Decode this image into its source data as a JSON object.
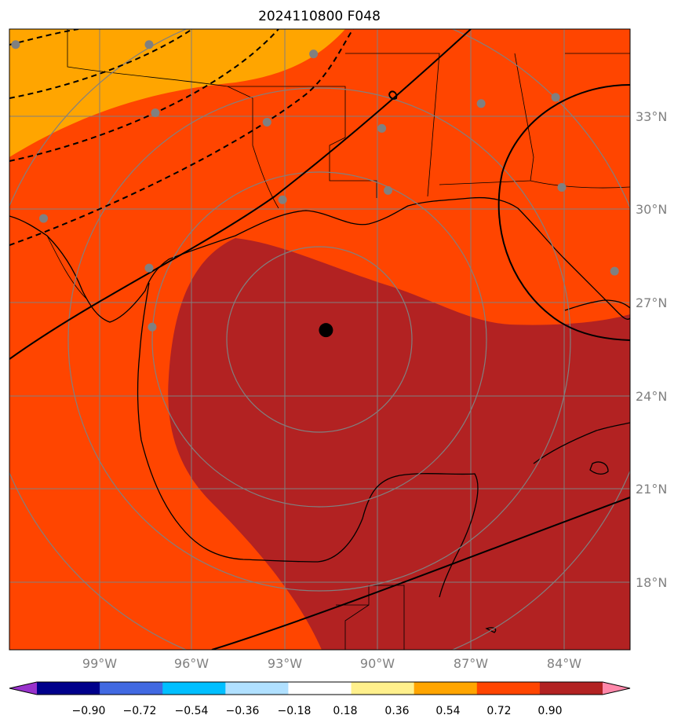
{
  "title": "2024110800 F048",
  "map": {
    "lat_labels": [
      "33°N",
      "30°N",
      "27°N",
      "24°N",
      "21°N",
      "18°N"
    ],
    "lon_labels": [
      "99°W",
      "96°W",
      "93°W",
      "90°W",
      "87°W",
      "84°W"
    ],
    "lon_range": [
      -102,
      -82
    ],
    "lat_range": [
      15.5,
      35.5
    ],
    "center_marker": {
      "lon": -91.8,
      "lat": 25.8
    },
    "station_markers": [
      {
        "lon": -101.8,
        "lat": 35.0
      },
      {
        "lon": -97.5,
        "lat": 35.0
      },
      {
        "lon": -92.2,
        "lat": 34.7
      },
      {
        "lon": -97.3,
        "lat": 32.8
      },
      {
        "lon": -93.7,
        "lat": 32.5
      },
      {
        "lon": -90.0,
        "lat": 32.3
      },
      {
        "lon": -86.8,
        "lat": 33.1
      },
      {
        "lon": -84.4,
        "lat": 33.3
      },
      {
        "lon": -93.2,
        "lat": 30.0
      },
      {
        "lon": -89.8,
        "lat": 30.3
      },
      {
        "lon": -84.2,
        "lat": 30.4
      },
      {
        "lon": -100.9,
        "lat": 29.4
      },
      {
        "lon": -97.5,
        "lat": 27.8
      },
      {
        "lon": -97.4,
        "lat": 25.9
      },
      {
        "lon": -82.5,
        "lat": 27.7
      }
    ],
    "range_rings": 4,
    "colors": {
      "orange": "#ffa500",
      "red_orange": "#ff4500",
      "firebrick": "#b22222",
      "grid": "#808080",
      "contour": "#000000"
    }
  },
  "colorbar": {
    "ticks": [
      "−0.90",
      "−0.72",
      "−0.54",
      "−0.36",
      "−0.18",
      "0.18",
      "0.36",
      "0.54",
      "0.72",
      "0.90"
    ],
    "colors": [
      "#9932cc",
      "#00008b",
      "#4169e1",
      "#00bfff",
      "#b0e0ff",
      "#ffffff",
      "#fff08c",
      "#ffa500",
      "#ff4500",
      "#b22222",
      "#ff88aa"
    ]
  }
}
